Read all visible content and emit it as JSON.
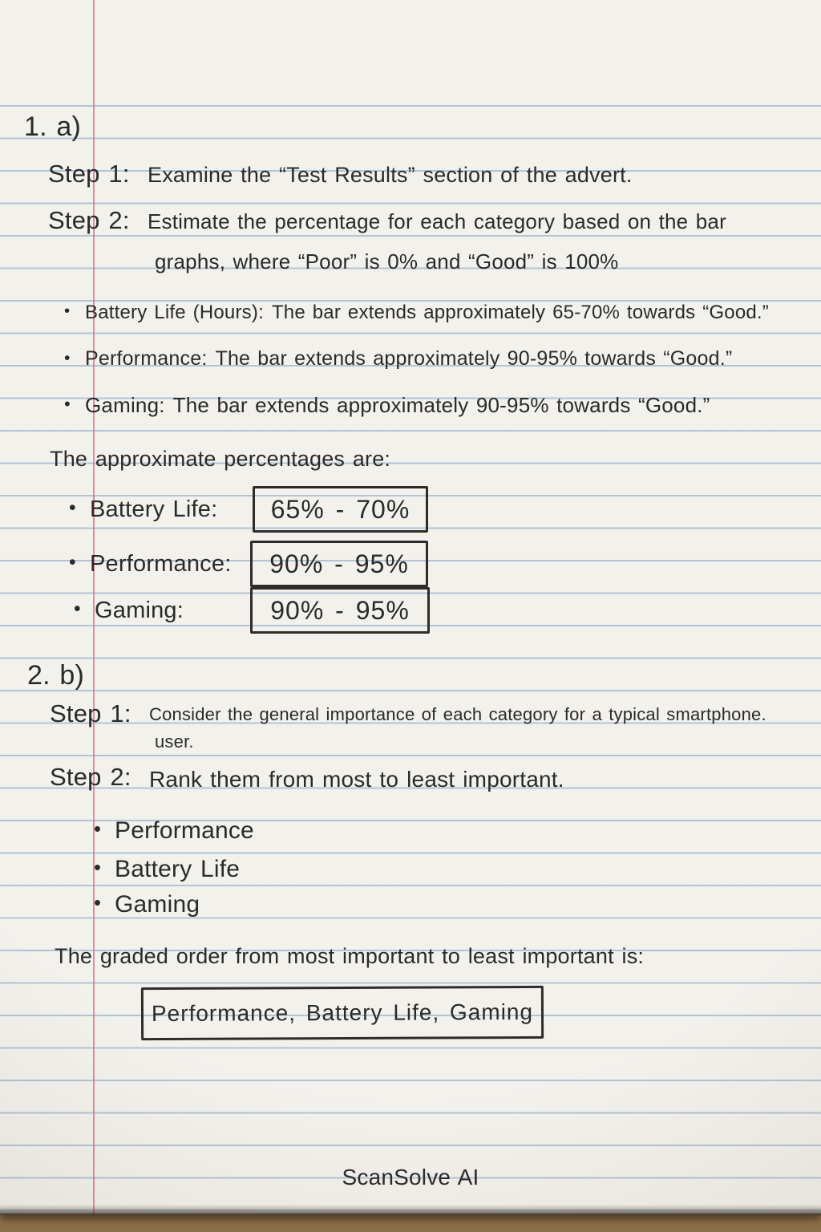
{
  "colors": {
    "paper": "#f3f1ec",
    "ruled_line": "#b0c7d9",
    "margin_line": "#dd6a84",
    "ink": "#2a2a2a",
    "desk": "#8c6f48",
    "paper_edge": "#40372a"
  },
  "part_a": {
    "heading": "1. a)",
    "steps": [
      {
        "label": "Step 1:",
        "line1": "Examine the “Test Results” section of the advert."
      },
      {
        "label": "Step 2:",
        "line1": "Estimate the percentage for each category based on the bar",
        "line2": "graphs, where “Poor” is 0% and “Good” is 100%"
      }
    ],
    "observations": [
      {
        "label": "Battery Life (Hours):",
        "text": "The bar extends approximately 65-70% towards “Good.”"
      },
      {
        "label": "Performance:",
        "text": "The bar extends approximately 90-95% towards “Good.”"
      },
      {
        "label": "Gaming:",
        "text": "The bar extends approximately 90-95% towards “Good.”"
      }
    ],
    "summary_intro": "The approximate percentages are:",
    "answers": [
      {
        "label": "Battery Life:",
        "value": "65% - 70%"
      },
      {
        "label": "Performance:",
        "value": "90% - 95%"
      },
      {
        "label": "Gaming:",
        "value": "90% - 95%"
      }
    ]
  },
  "part_b": {
    "heading": "2. b)",
    "steps": [
      {
        "label": "Step 1:",
        "line1": "Consider the general importance of each category for a typical smartphone.",
        "line2": "user."
      },
      {
        "label": "Step 2:",
        "line1": "Rank them from most to least important."
      }
    ],
    "ranking": [
      "Performance",
      "Battery Life",
      "Gaming"
    ],
    "summary_intro": "The graded order from most important to least important is:",
    "final_answer": "Performance, Battery Life, Gaming"
  },
  "footer": {
    "brand": "ScanSolve AI"
  }
}
